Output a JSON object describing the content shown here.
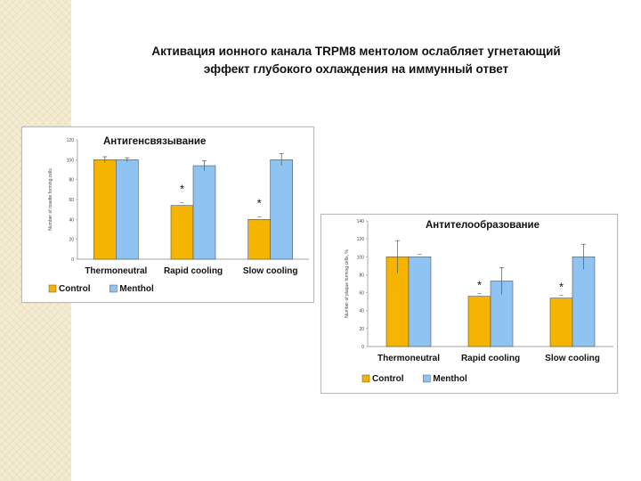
{
  "slide": {
    "title_line1": "Активация  ионного канала TRPM8 ментолом ослабляет угнетающий",
    "title_line2": "эффект глубокого охлаждения на иммунный ответ"
  },
  "colors": {
    "control": "#f5b400",
    "menthol": "#8fc4f2",
    "bar_outline": "#555555"
  },
  "chart_data": [
    {
      "type": "bar",
      "title": "Антигенсвязывание",
      "ylabel": "Number of rosette forming cells",
      "ylim": [
        0,
        120
      ],
      "yticks": [
        "0",
        "20",
        "40",
        "60",
        "80",
        "100",
        "120"
      ],
      "categories": [
        "Thermoneutral",
        "Rapid cooling",
        "Slow cooling"
      ],
      "series": [
        {
          "name": "Control",
          "values": [
            100,
            54,
            40
          ],
          "errors": [
            3,
            0,
            0
          ]
        },
        {
          "name": "Menthol",
          "values": [
            100,
            94,
            100
          ],
          "errors": [
            2,
            5,
            6
          ]
        }
      ],
      "annotations": [
        {
          "category": "Rapid cooling",
          "text": "*"
        },
        {
          "category": "Slow cooling",
          "text": "*"
        }
      ],
      "legend": "bottom-left",
      "grid": false
    },
    {
      "type": "bar",
      "title": "Антителообразование",
      "ylabel": "Number of plaque forming cells, %",
      "ylim": [
        0,
        140
      ],
      "yticks": [
        "0",
        "20",
        "40",
        "60",
        "80",
        "100",
        "120",
        "140"
      ],
      "categories": [
        "Thermoneutral",
        "Rapid cooling",
        "Slow cooling"
      ],
      "series": [
        {
          "name": "Control",
          "values": [
            100,
            56,
            54
          ],
          "errors": [
            18,
            0,
            0
          ]
        },
        {
          "name": "Menthol",
          "values": [
            100,
            73,
            100
          ],
          "errors": [
            0,
            15,
            14
          ]
        }
      ],
      "annotations": [
        {
          "category": "Rapid cooling",
          "text": "*"
        },
        {
          "category": "Slow cooling",
          "text": "*"
        }
      ],
      "legend": "bottom-left",
      "grid": false
    }
  ]
}
